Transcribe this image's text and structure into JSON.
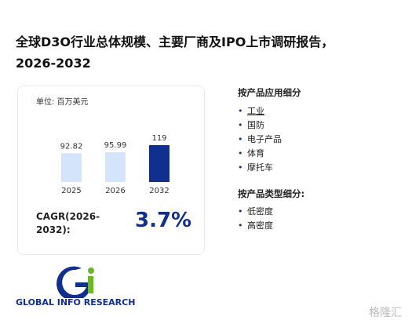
{
  "header": {
    "title_lines": [
      "全球D3O行业总体规模、主要厂商及IPO上市调研报告，",
      "2026-2032"
    ]
  },
  "chart_data": {
    "type": "bar",
    "unit_label": "单位: 百万美元",
    "categories": [
      "2025",
      "2026",
      "2032"
    ],
    "values": [
      92.82,
      95.99,
      119
    ],
    "colors": [
      "#d4e5fb",
      "#d4e5fb",
      "#102f8f"
    ]
  },
  "cagr": {
    "label": "CAGR(2026-2032):",
    "value": "3.7%"
  },
  "segments": [
    {
      "title": "按产品应用细分",
      "items": [
        "工业",
        "国防",
        "电子产品",
        "体育",
        "摩托车"
      ]
    },
    {
      "title": "按产品类型细分:",
      "items": [
        "低密度",
        "高密度"
      ]
    }
  ],
  "logo": {
    "text": "GLOBAL INFO RESEARCH"
  },
  "watermark": "格隆汇"
}
